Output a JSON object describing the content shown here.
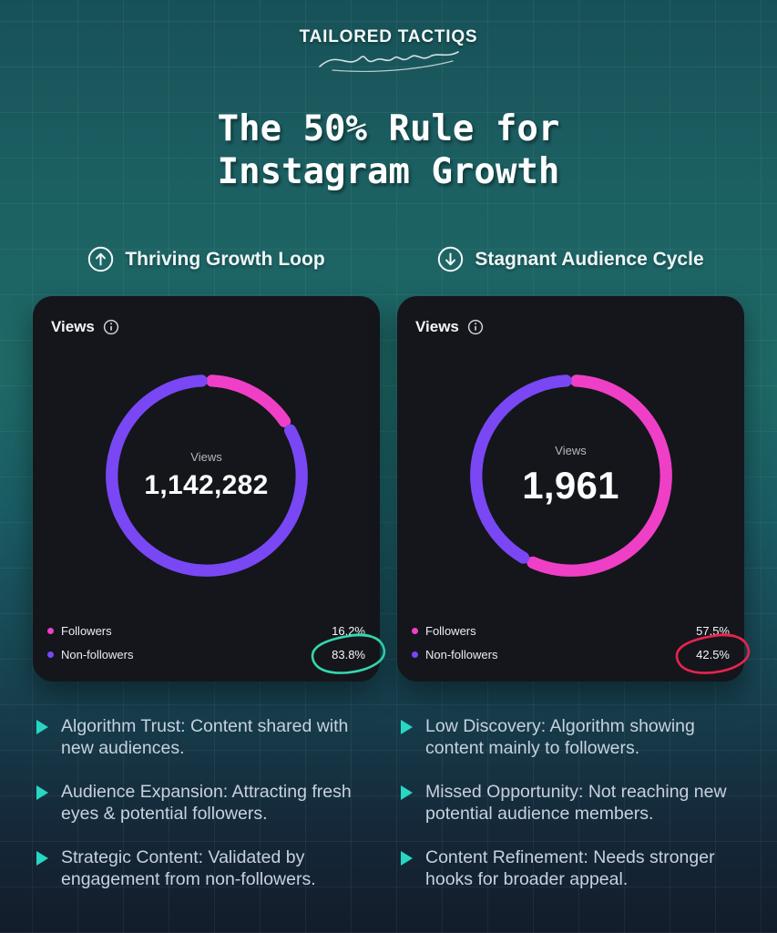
{
  "brand": {
    "name": "TAILORED TACTIQS"
  },
  "title": {
    "line1": "The 50% Rule for",
    "line2": "Instagram Growth"
  },
  "sections": {
    "left": {
      "header": "Thriving Growth Loop",
      "card": {
        "title": "Views",
        "center_label": "Views",
        "center_value": "1,142,282",
        "legend": [
          {
            "label": "Followers",
            "value": "16.2%"
          },
          {
            "label": "Non-followers",
            "value": "83.8%"
          }
        ]
      },
      "bullets": [
        "Algorithm Trust: Content shared with new audiences.",
        "Audience Expansion: Attracting fresh eyes & potential followers.",
        "Strategic Content: Validated by engagement from non-followers."
      ]
    },
    "right": {
      "header": "Stagnant Audience Cycle",
      "card": {
        "title": "Views",
        "center_label": "Views",
        "center_value": "1,961",
        "legend": [
          {
            "label": "Followers",
            "value": "57.5%"
          },
          {
            "label": "Non-followers",
            "value": "42.5%"
          }
        ]
      },
      "bullets": [
        "Low Discovery: Algorithm showing content mainly to followers.",
        "Missed Opportunity: Not reaching new potential audience members.",
        "Content Refinement: Needs stronger hooks for broader appeal."
      ]
    }
  },
  "colors": {
    "followers_pink": "#f03fc7",
    "non_followers_purple": "#7a47f5",
    "highlight_good": "#35d6ae",
    "highlight_bad": "#e8234f",
    "bullet_marker": "#27d6c3"
  },
  "chart_data": [
    {
      "type": "pie",
      "title": "Views — Thriving Growth Loop",
      "center_label": "Views",
      "center_value": "1,142,282",
      "labels": [
        "Followers",
        "Non-followers"
      ],
      "values": [
        16.2,
        83.8
      ],
      "colors": [
        "#f03fc7",
        "#7a47f5"
      ],
      "donut": true,
      "start_angle": "top",
      "direction": "clockwise",
      "legend_position": "bottom",
      "annotation": "83.8% circled in teal (good)"
    },
    {
      "type": "pie",
      "title": "Views — Stagnant Audience Cycle",
      "center_label": "Views",
      "center_value": "1,961",
      "labels": [
        "Followers",
        "Non-followers"
      ],
      "values": [
        57.5,
        42.5
      ],
      "colors": [
        "#f03fc7",
        "#7a47f5"
      ],
      "donut": true,
      "start_angle": "top",
      "direction": "clockwise",
      "legend_position": "bottom",
      "annotation": "42.5% circled in red (bad)"
    }
  ]
}
